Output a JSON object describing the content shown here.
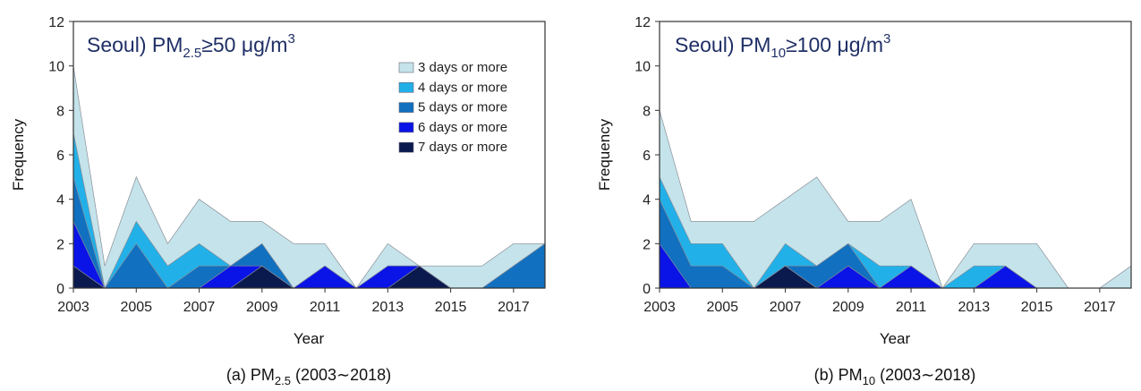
{
  "chart_data": [
    {
      "type": "area",
      "panel_title": {
        "prefix": "Seoul) PM",
        "sub": "2.5",
        "rel": "≥50 μg/m",
        "sup": "3"
      },
      "caption": {
        "prefix": "(a) PM",
        "sub": "2.5",
        "suffix": " (2003∼2018)"
      },
      "xlabel": "Year",
      "ylabel": "Frequency",
      "xlim": [
        2003,
        2018
      ],
      "ylim": [
        0,
        12
      ],
      "x_ticks": [
        "2003",
        "2005",
        "2007",
        "2009",
        "2011",
        "2013",
        "2015",
        "2017"
      ],
      "y_ticks": [
        "0",
        "2",
        "4",
        "6",
        "8",
        "10",
        "12"
      ],
      "legend_position": "top-right",
      "x": [
        2003,
        2004,
        2005,
        2006,
        2007,
        2008,
        2009,
        2010,
        2011,
        2012,
        2013,
        2014,
        2015,
        2016,
        2017,
        2018
      ],
      "series": [
        {
          "name": "3 days or more",
          "color": "#c5e3ea",
          "values": [
            10,
            1,
            5,
            2,
            4,
            3,
            3,
            2,
            2,
            0,
            2,
            1,
            1,
            1,
            2,
            2
          ]
        },
        {
          "name": "4 days or more",
          "color": "#22b0e8",
          "values": [
            7,
            0,
            3,
            1,
            2,
            1,
            2,
            0,
            1,
            0,
            1,
            1,
            0,
            0,
            1,
            2
          ]
        },
        {
          "name": "5 days or more",
          "color": "#1170bf",
          "values": [
            5,
            0,
            2,
            0,
            1,
            1,
            2,
            0,
            1,
            0,
            1,
            1,
            0,
            0,
            1,
            2
          ]
        },
        {
          "name": "6 days or more",
          "color": "#0a14e6",
          "values": [
            3,
            0,
            0,
            0,
            0,
            1,
            1,
            0,
            1,
            0,
            1,
            1,
            0,
            0,
            0,
            0
          ]
        },
        {
          "name": "7 days or more",
          "color": "#0b1a4e",
          "values": [
            1,
            0,
            0,
            0,
            0,
            0,
            1,
            0,
            0,
            0,
            0,
            1,
            0,
            0,
            0,
            0
          ]
        }
      ]
    },
    {
      "type": "area",
      "panel_title": {
        "prefix": "Seoul) PM",
        "sub": "10",
        "rel": "≥100 μg/m",
        "sup": "3"
      },
      "caption": {
        "prefix": "(b) PM",
        "sub": "10",
        "suffix": " (2003∼2018)"
      },
      "xlabel": "Year",
      "ylabel": "Frequency",
      "xlim": [
        2003,
        2018
      ],
      "ylim": [
        0,
        12
      ],
      "x_ticks": [
        "2003",
        "2005",
        "2007",
        "2009",
        "2011",
        "2013",
        "2015",
        "2017"
      ],
      "y_ticks": [
        "0",
        "2",
        "4",
        "6",
        "8",
        "10",
        "12"
      ],
      "x": [
        2003,
        2004,
        2005,
        2006,
        2007,
        2008,
        2009,
        2010,
        2011,
        2012,
        2013,
        2014,
        2015,
        2016,
        2017,
        2018
      ],
      "series": [
        {
          "name": "3 days or more",
          "color": "#c5e3ea",
          "values": [
            8,
            3,
            3,
            3,
            4,
            5,
            3,
            3,
            4,
            0,
            2,
            2,
            2,
            0,
            0,
            1
          ]
        },
        {
          "name": "4 days or more",
          "color": "#22b0e8",
          "values": [
            5,
            2,
            2,
            0,
            2,
            1,
            2,
            1,
            1,
            0,
            1,
            1,
            0,
            0,
            0,
            0
          ]
        },
        {
          "name": "5 days or more",
          "color": "#1170bf",
          "values": [
            4,
            1,
            1,
            0,
            1,
            1,
            2,
            0,
            1,
            0,
            0,
            1,
            0,
            0,
            0,
            0
          ]
        },
        {
          "name": "6 days or more",
          "color": "#0a14e6",
          "values": [
            2,
            0,
            0,
            0,
            1,
            0,
            1,
            0,
            1,
            0,
            0,
            1,
            0,
            0,
            0,
            0
          ]
        },
        {
          "name": "7 days or more",
          "color": "#0b1a4e",
          "values": [
            0,
            0,
            0,
            0,
            1,
            0,
            0,
            0,
            0,
            0,
            0,
            0,
            0,
            0,
            0,
            0
          ]
        }
      ]
    }
  ]
}
